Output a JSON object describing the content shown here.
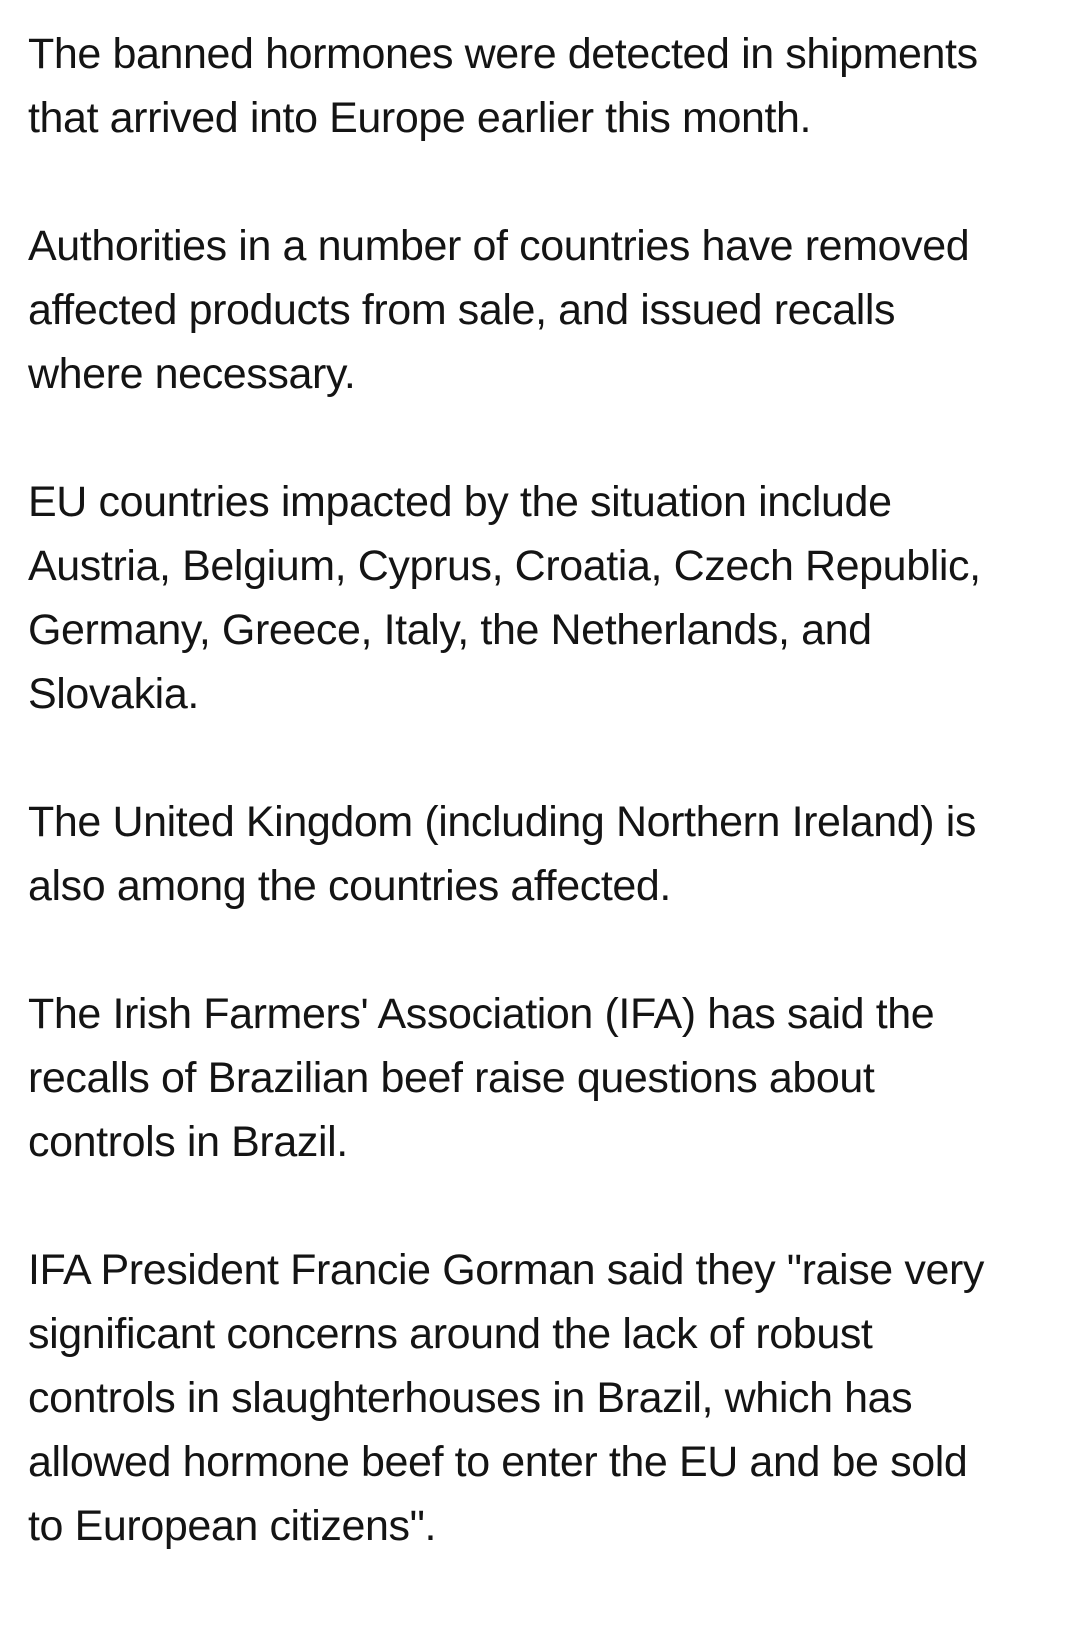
{
  "article": {
    "text_color": "#141414",
    "background_color": "#ffffff",
    "paragraphs": [
      "The banned hormones were detected in shipments that arrived into Europe earlier this month.",
      "Authorities in a number of countries have removed affected products from sale, and issued recalls where necessary.",
      "EU countries impacted by the situation include Austria, Belgium, Cyprus, Croatia, Czech Republic, Germany, Greece, Italy, the Netherlands, and Slovakia.",
      "The United Kingdom (including Northern Ireland) is also among the countries affected.",
      "The Irish Farmers' Association (IFA) has said the recalls of Brazilian beef raise questions about controls in Brazil.",
      "IFA President Francie Gorman said they \"raise very significant concerns around the lack of robust controls in slaughterhouses in Brazil, which has allowed hormone beef to enter the EU and be sold to European citizens\"."
    ]
  }
}
